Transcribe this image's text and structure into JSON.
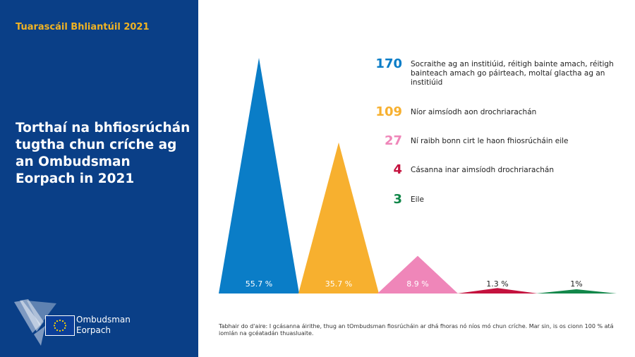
{
  "report_label": "Tuarascáil Bhliantúil 2021",
  "title": "Torthaí na bhfiosrúchán tugtha chun críche ag an Ombudsman Eorpach in 2021",
  "logo": {
    "line1": "Ombudsman",
    "line2": "Eorpach"
  },
  "note": "Tabhair do d'aire: I gcásanna áirithe, thug an tOmbudsman fiosrúcháin ar dhá fhoras nó níos mó chun críche. Mar sin, is os cionn 100 % atá iomlán na gcéatadán thuasluaite.",
  "chart_data": {
    "type": "bar",
    "series": [
      {
        "name": "Socraithe ag an institiúid, réitigh bainte amach, réitigh bainteach amach go páirteach, moltaí glactha ag an institiúid",
        "count": "170",
        "percent_label": "55.7 %",
        "value": 55.7,
        "color": "#0a7dc7"
      },
      {
        "name": "Níor aimsíodh aon drochriarachán",
        "count": "109",
        "percent_label": "35.7 %",
        "value": 35.7,
        "color": "#f7b02f"
      },
      {
        "name": "Ní raibh bonn cirt le haon fhiosrúcháin eile",
        "count": "27",
        "percent_label": "8.9 %",
        "value": 8.9,
        "color": "#ef86b9"
      },
      {
        "name": "Cásanna inar aimsíodh drochriarachán",
        "count": "4",
        "percent_label": "1.3 %",
        "value": 1.3,
        "color": "#c4123e"
      },
      {
        "name": "Eile",
        "count": "3",
        "percent_label": "1%",
        "value": 1,
        "color": "#12874a"
      }
    ]
  }
}
